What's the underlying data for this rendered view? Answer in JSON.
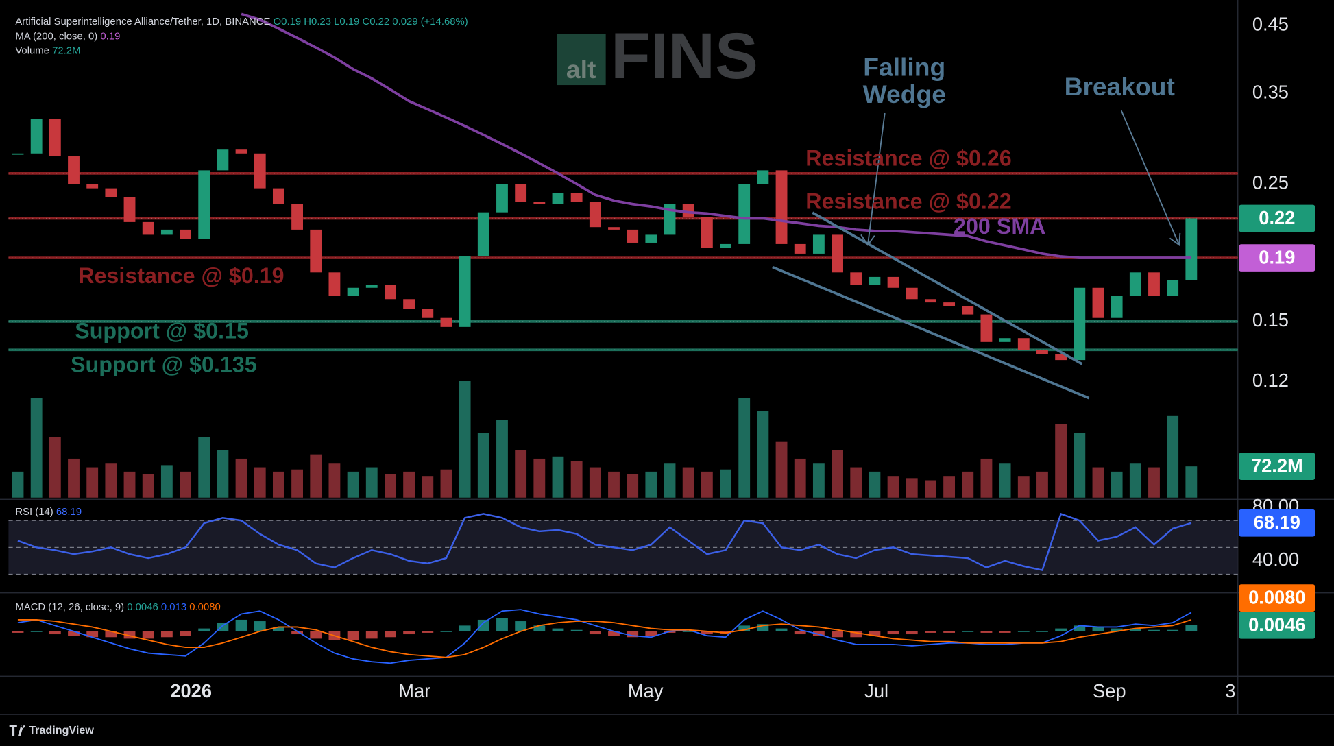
{
  "header": {
    "symbol": "Artificial Superintelligence Alliance/Tether, 1D, BINANCE",
    "ohlc": "O0.19 H0.23 L0.19 C0.22 0.029 (+14.68%)",
    "ma_label": "MA (200, close, 0)",
    "volume_label": "Volume"
  },
  "watermark": {
    "alt": "alt",
    "fins": "FINS"
  },
  "footer": "TradingView",
  "chart_data": [
    {
      "type": "candlestick",
      "log_scale": true,
      "xlim": [
        0,
        66
      ],
      "xticks": [
        {
          "value": 9.8,
          "label": "2026"
        },
        {
          "value": 21.8,
          "label": "Mar"
        },
        {
          "value": 34.2,
          "label": "May"
        },
        {
          "value": 46.6,
          "label": "Jul"
        },
        {
          "value": 59.1,
          "label": "Sep"
        },
        {
          "value": 65.6,
          "label": "3"
        }
      ],
      "ylim": [
        0.078,
        0.495
      ],
      "yticks": [
        0.45,
        0.35,
        0.25,
        0.15,
        0.12
      ],
      "up_color": "#1e9b78",
      "down_color": "#c8383d",
      "close": [
        0.28,
        0.318,
        0.277,
        0.25,
        0.246,
        0.238,
        0.217,
        0.207,
        0.211,
        0.204,
        0.263,
        0.284,
        0.28,
        0.246,
        0.232,
        0.211,
        0.18,
        0.165,
        0.17,
        0.172,
        0.163,
        0.157,
        0.152,
        0.147,
        0.191,
        0.225,
        0.25,
        0.234,
        0.232,
        0.242,
        0.234,
        0.213,
        0.211,
        0.201,
        0.207,
        0.232,
        0.221,
        0.197,
        0.2,
        0.25,
        0.263,
        0.2,
        0.193,
        0.207,
        0.18,
        0.172,
        0.177,
        0.17,
        0.163,
        0.161,
        0.159,
        0.154,
        0.139,
        0.141,
        0.135,
        0.133,
        0.13,
        0.17,
        0.152,
        0.165,
        0.18,
        0.165,
        0.175,
        0.22
      ],
      "last_color": "#1c9a78",
      "ma": {
        "name": "200 SMA",
        "color": "#7e3fa0",
        "badge_color": "#c25fd6",
        "values": [
          null,
          null,
          null,
          null,
          null,
          null,
          null,
          null,
          null,
          null,
          null,
          null,
          0.47,
          0.46,
          0.445,
          0.43,
          0.415,
          0.4,
          0.383,
          0.37,
          0.355,
          0.34,
          0.33,
          0.32,
          0.31,
          0.3,
          0.29,
          0.28,
          0.27,
          0.26,
          0.25,
          0.24,
          0.235,
          0.232,
          0.23,
          0.227,
          0.225,
          0.224,
          0.222,
          0.22,
          0.22,
          0.218,
          0.216,
          0.214,
          0.213,
          0.211,
          0.21,
          0.21,
          0.209,
          0.208,
          0.207,
          0.206,
          0.202,
          0.199,
          0.196,
          0.193,
          0.191,
          0.19,
          0.19,
          0.19,
          0.19,
          0.19,
          0.19,
          0.19
        ]
      },
      "levels": [
        {
          "label": "Resistance @ $0.26",
          "value": 0.26,
          "color": "#8a1f22"
        },
        {
          "label": "Resistance @ $0.22",
          "value": 0.22,
          "color": "#8a1f22"
        },
        {
          "label": "Resistance @ $0.19",
          "value": 0.19,
          "color": "#8a1f22"
        },
        {
          "label": "Support @ $0.15",
          "value": 0.15,
          "color": "#1c6e5a"
        },
        {
          "label": "Support @ $0.135",
          "value": 0.135,
          "color": "#1c6e5a"
        }
      ],
      "annotations": [
        "Falling",
        "Wedge",
        "Breakout"
      ]
    },
    {
      "type": "bar",
      "name": "Volume",
      "ylim": [
        0,
        285
      ],
      "up_color": "#1d6b5c",
      "down_color": "#7d2a30",
      "badge_color": "#1c9a78",
      "values": [
        60,
        230,
        140,
        90,
        70,
        80,
        60,
        55,
        75,
        60,
        140,
        110,
        90,
        70,
        60,
        65,
        100,
        80,
        60,
        70,
        55,
        60,
        50,
        65,
        270,
        150,
        180,
        110,
        90,
        95,
        85,
        70,
        60,
        55,
        60,
        80,
        70,
        60,
        65,
        230,
        200,
        130,
        90,
        80,
        110,
        70,
        60,
        50,
        45,
        40,
        50,
        60,
        90,
        80,
        50,
        60,
        170,
        150,
        70,
        60,
        80,
        70,
        190,
        72.2
      ],
      "last_label": "72.2M"
    },
    {
      "type": "line",
      "title": "RSI (14)",
      "color": "#3b5fe6",
      "badge_color": "#2962ff",
      "ylim": [
        16.7,
        85.2
      ],
      "yticks": [
        {
          "value": 80,
          "label": "80.00"
        },
        {
          "value": 40,
          "label": "40.00"
        }
      ],
      "bands": [
        70,
        50,
        30
      ],
      "values": [
        55,
        50,
        48,
        45,
        47,
        50,
        45,
        42,
        45,
        50,
        68,
        72,
        70,
        60,
        52,
        48,
        38,
        35,
        42,
        48,
        45,
        40,
        38,
        42,
        72,
        75,
        72,
        65,
        62,
        63,
        60,
        52,
        50,
        48,
        52,
        65,
        55,
        45,
        48,
        70,
        68,
        50,
        48,
        52,
        45,
        42,
        48,
        50,
        45,
        44,
        43,
        42,
        35,
        40,
        36,
        33,
        75,
        70,
        55,
        58,
        65,
        52,
        64,
        68.19
      ]
    },
    {
      "type": "macd",
      "title": "MACD (12, 26, close, 9)",
      "ylim": [
        -0.031,
        0.026
      ],
      "signal_last_label": "0.0080",
      "series": [
        {
          "name": "MACD",
          "color": "#2962ff",
          "values": [
            0.006,
            0.008,
            0.004,
            0.0,
            -0.004,
            -0.008,
            -0.012,
            -0.015,
            -0.016,
            -0.017,
            -0.008,
            0.004,
            0.012,
            0.014,
            0.008,
            0.0,
            -0.008,
            -0.015,
            -0.019,
            -0.021,
            -0.022,
            -0.02,
            -0.019,
            -0.018,
            -0.008,
            0.006,
            0.014,
            0.015,
            0.012,
            0.01,
            0.008,
            0.004,
            0.0,
            -0.003,
            -0.004,
            0.0,
            0.001,
            -0.003,
            -0.004,
            0.008,
            0.014,
            0.008,
            0.001,
            -0.002,
            -0.006,
            -0.009,
            -0.009,
            -0.009,
            -0.01,
            -0.009,
            -0.008,
            -0.008,
            -0.009,
            -0.009,
            -0.008,
            -0.008,
            -0.003,
            0.004,
            0.003,
            0.003,
            0.005,
            0.004,
            0.006,
            0.013
          ]
        },
        {
          "name": "Signal",
          "color": "#ff6d00",
          "values": [
            0.008,
            0.008,
            0.007,
            0.005,
            0.003,
            0.0,
            -0.003,
            -0.006,
            -0.009,
            -0.011,
            -0.011,
            -0.008,
            -0.004,
            0.0,
            0.003,
            0.003,
            0.001,
            -0.003,
            -0.007,
            -0.011,
            -0.014,
            -0.016,
            -0.017,
            -0.018,
            -0.016,
            -0.011,
            -0.005,
            0.0,
            0.004,
            0.006,
            0.007,
            0.007,
            0.006,
            0.004,
            0.002,
            0.001,
            0.001,
            0.0,
            -0.001,
            0.001,
            0.004,
            0.005,
            0.004,
            0.003,
            0.001,
            -0.001,
            -0.003,
            -0.005,
            -0.006,
            -0.007,
            -0.007,
            -0.008,
            -0.008,
            -0.008,
            -0.008,
            -0.008,
            -0.007,
            -0.004,
            -0.002,
            0.0,
            0.002,
            0.003,
            0.004,
            0.008
          ]
        },
        {
          "name": "Histogram",
          "color": "#26a69a",
          "down_color": "#ef5350",
          "values": [
            -0.001,
            0.0,
            -0.002,
            -0.003,
            -0.004,
            -0.004,
            -0.005,
            -0.005,
            -0.004,
            -0.003,
            0.002,
            0.006,
            0.008,
            0.007,
            0.003,
            -0.002,
            -0.005,
            -0.006,
            -0.006,
            -0.005,
            -0.004,
            -0.002,
            -0.001,
            0.0,
            0.004,
            0.008,
            0.009,
            0.007,
            0.004,
            0.002,
            0.001,
            -0.002,
            -0.003,
            -0.004,
            -0.003,
            -0.001,
            0.0,
            -0.002,
            -0.002,
            0.004,
            0.005,
            0.002,
            -0.002,
            -0.003,
            -0.004,
            -0.004,
            -0.003,
            -0.002,
            -0.002,
            -0.001,
            -0.001,
            0.0,
            -0.001,
            -0.001,
            0.0,
            0.0,
            0.002,
            0.004,
            0.003,
            0.002,
            0.002,
            0.001,
            0.001,
            0.0046
          ]
        }
      ]
    }
  ]
}
